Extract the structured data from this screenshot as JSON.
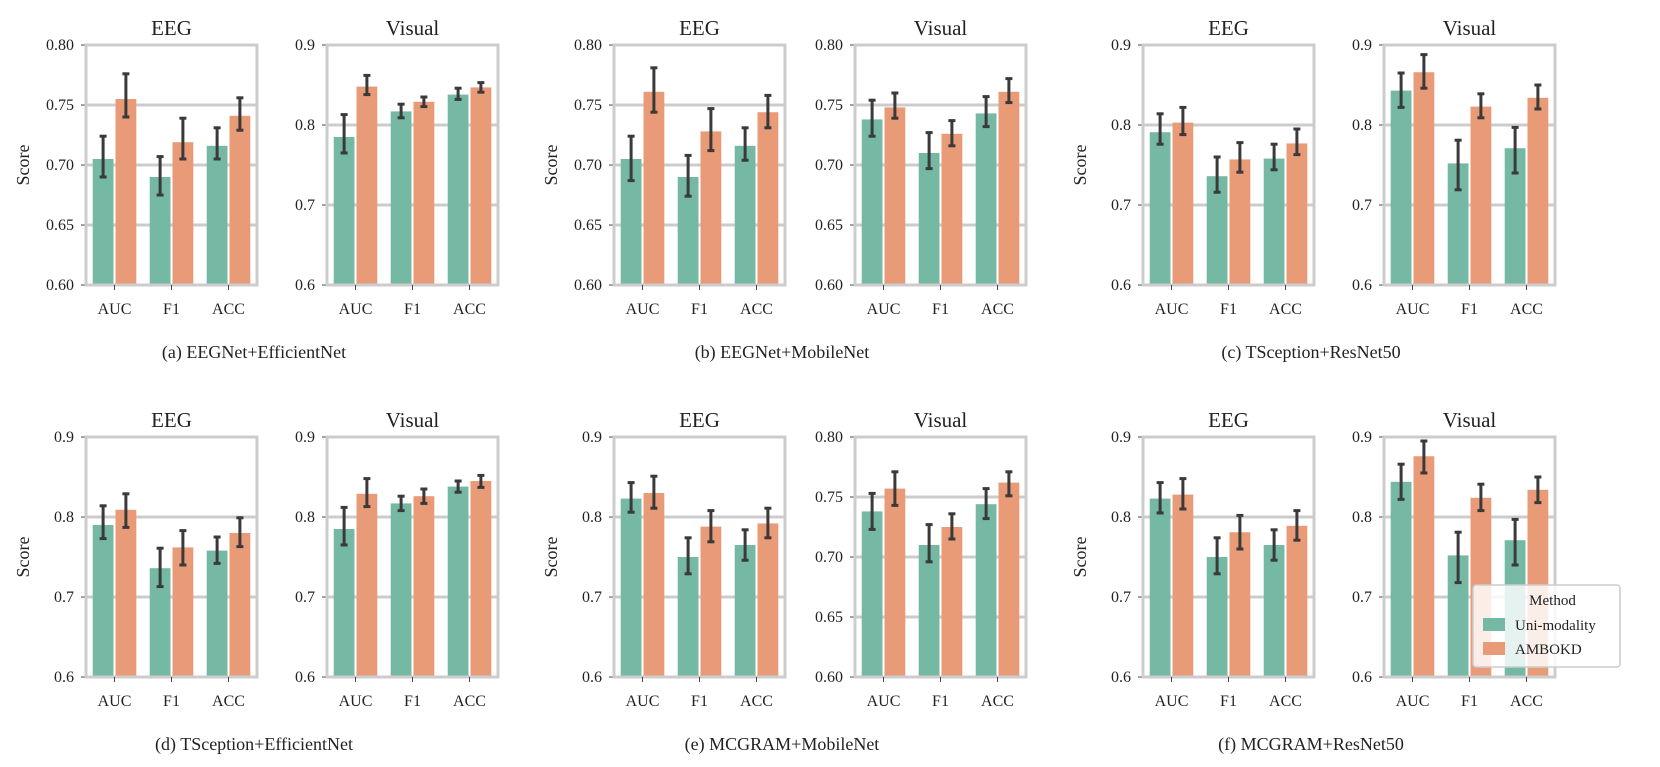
{
  "figure": {
    "colors": {
      "uni": "#75b8a4",
      "ambokd": "#e99b78",
      "grid": "#cccccc",
      "frame": "#cccccc",
      "err": "#3a3a3a"
    },
    "legend": {
      "title": "Method",
      "labels": [
        "Uni-modality",
        "AMBOKD"
      ],
      "placement": "bottom-right of panel (f)"
    },
    "ylabel": "Score"
  },
  "chart_data": [
    {
      "caption": "(a) EEGNet+EfficientNet",
      "subplots": [
        {
          "type": "bar",
          "title": "EEG",
          "categories": [
            "AUC",
            "F1",
            "ACC"
          ],
          "ylim": [
            0.6,
            0.8
          ],
          "yticks": [
            "0.60",
            "0.65",
            "0.70",
            "0.75",
            "0.80"
          ],
          "ylabel": "Score",
          "series": [
            {
              "name": "Uni-modality",
              "values": [
                0.705,
                0.69,
                0.716
              ],
              "err": [
                [
                  0.69,
                  0.724
                ],
                [
                  0.675,
                  0.707
                ],
                [
                  0.705,
                  0.731
                ]
              ]
            },
            {
              "name": "AMBOKD",
              "values": [
                0.755,
                0.719,
                0.741
              ],
              "err": [
                [
                  0.74,
                  0.776
                ],
                [
                  0.705,
                  0.739
                ],
                [
                  0.729,
                  0.756
                ]
              ]
            }
          ]
        },
        {
          "type": "bar",
          "title": "Visual",
          "categories": [
            "AUC",
            "F1",
            "ACC"
          ],
          "ylim": [
            0.6,
            0.9
          ],
          "yticks": [
            "0.6",
            "0.7",
            "0.8",
            "0.9"
          ],
          "ylabel": "",
          "series": [
            {
              "name": "Uni-modality",
              "values": [
                0.785,
                0.817,
                0.838
              ],
              "err": [
                [
                  0.765,
                  0.813
                ],
                [
                  0.809,
                  0.826
                ],
                [
                  0.832,
                  0.846
                ]
              ]
            },
            {
              "name": "AMBOKD",
              "values": [
                0.848,
                0.829,
                0.847
              ],
              "err": [
                [
                  0.838,
                  0.862
                ],
                [
                  0.823,
                  0.835
                ],
                [
                  0.841,
                  0.853
                ]
              ]
            }
          ]
        }
      ]
    },
    {
      "caption": "(b) EEGNet+MobileNet",
      "subplots": [
        {
          "type": "bar",
          "title": "EEG",
          "categories": [
            "AUC",
            "F1",
            "ACC"
          ],
          "ylim": [
            0.6,
            0.8
          ],
          "yticks": [
            "0.60",
            "0.65",
            "0.70",
            "0.75",
            "0.80"
          ],
          "ylabel": "Score",
          "series": [
            {
              "name": "Uni-modality",
              "values": [
                0.705,
                0.69,
                0.716
              ],
              "err": [
                [
                  0.687,
                  0.724
                ],
                [
                  0.674,
                  0.708
                ],
                [
                  0.704,
                  0.731
                ]
              ]
            },
            {
              "name": "AMBOKD",
              "values": [
                0.761,
                0.728,
                0.744
              ],
              "err": [
                [
                  0.744,
                  0.781
                ],
                [
                  0.712,
                  0.747
                ],
                [
                  0.731,
                  0.758
                ]
              ]
            }
          ]
        },
        {
          "type": "bar",
          "title": "Visual",
          "categories": [
            "AUC",
            "F1",
            "ACC"
          ],
          "ylim": [
            0.6,
            0.8
          ],
          "yticks": [
            "0.60",
            "0.65",
            "0.70",
            "0.75",
            "0.80"
          ],
          "ylabel": "",
          "series": [
            {
              "name": "Uni-modality",
              "values": [
                0.738,
                0.71,
                0.743
              ],
              "err": [
                [
                  0.724,
                  0.754
                ],
                [
                  0.697,
                  0.727
                ],
                [
                  0.732,
                  0.757
                ]
              ]
            },
            {
              "name": "AMBOKD",
              "values": [
                0.748,
                0.726,
                0.761
              ],
              "err": [
                [
                  0.739,
                  0.76
                ],
                [
                  0.716,
                  0.737
                ],
                [
                  0.752,
                  0.772
                ]
              ]
            }
          ]
        }
      ]
    },
    {
      "caption": "(c) TSception+ResNet50",
      "subplots": [
        {
          "type": "bar",
          "title": "EEG",
          "categories": [
            "AUC",
            "F1",
            "ACC"
          ],
          "ylim": [
            0.6,
            0.9
          ],
          "yticks": [
            "0.6",
            "0.7",
            "0.8",
            "0.9"
          ],
          "ylabel": "Score",
          "series": [
            {
              "name": "Uni-modality",
              "values": [
                0.791,
                0.736,
                0.758
              ],
              "err": [
                [
                  0.776,
                  0.814
                ],
                [
                  0.716,
                  0.76
                ],
                [
                  0.744,
                  0.776
                ]
              ]
            },
            {
              "name": "AMBOKD",
              "values": [
                0.803,
                0.757,
                0.777
              ],
              "err": [
                [
                  0.788,
                  0.822
                ],
                [
                  0.741,
                  0.778
                ],
                [
                  0.763,
                  0.795
                ]
              ]
            }
          ]
        },
        {
          "type": "bar",
          "title": "Visual",
          "categories": [
            "AUC",
            "F1",
            "ACC"
          ],
          "ylim": [
            0.6,
            0.9
          ],
          "yticks": [
            "0.6",
            "0.7",
            "0.8",
            "0.9"
          ],
          "ylabel": "",
          "series": [
            {
              "name": "Uni-modality",
              "values": [
                0.843,
                0.752,
                0.771
              ],
              "err": [
                [
                  0.822,
                  0.865
                ],
                [
                  0.719,
                  0.781
                ],
                [
                  0.74,
                  0.797
                ]
              ]
            },
            {
              "name": "AMBOKD",
              "values": [
                0.866,
                0.823,
                0.834
              ],
              "err": [
                [
                  0.846,
                  0.888
                ],
                [
                  0.809,
                  0.839
                ],
                [
                  0.82,
                  0.85
                ]
              ]
            }
          ]
        }
      ]
    },
    {
      "caption": "(d) TSception+EfficientNet",
      "subplots": [
        {
          "type": "bar",
          "title": "EEG",
          "categories": [
            "AUC",
            "F1",
            "ACC"
          ],
          "ylim": [
            0.6,
            0.9
          ],
          "yticks": [
            "0.6",
            "0.7",
            "0.8",
            "0.9"
          ],
          "ylabel": "Score",
          "series": [
            {
              "name": "Uni-modality",
              "values": [
                0.79,
                0.736,
                0.758
              ],
              "err": [
                [
                  0.773,
                  0.814
                ],
                [
                  0.713,
                  0.761
                ],
                [
                  0.742,
                  0.775
                ]
              ]
            },
            {
              "name": "AMBOKD",
              "values": [
                0.809,
                0.762,
                0.78
              ],
              "err": [
                [
                  0.787,
                  0.829
                ],
                [
                  0.74,
                  0.783
                ],
                [
                  0.763,
                  0.799
                ]
              ]
            }
          ]
        },
        {
          "type": "bar",
          "title": "Visual",
          "categories": [
            "AUC",
            "F1",
            "ACC"
          ],
          "ylim": [
            0.6,
            0.9
          ],
          "yticks": [
            "0.6",
            "0.7",
            "0.8",
            "0.9"
          ],
          "ylabel": "",
          "series": [
            {
              "name": "Uni-modality",
              "values": [
                0.785,
                0.817,
                0.838
              ],
              "err": [
                [
                  0.765,
                  0.812
                ],
                [
                  0.808,
                  0.826
                ],
                [
                  0.831,
                  0.845
                ]
              ]
            },
            {
              "name": "AMBOKD",
              "values": [
                0.829,
                0.826,
                0.845
              ],
              "err": [
                [
                  0.813,
                  0.848
                ],
                [
                  0.817,
                  0.835
                ],
                [
                  0.837,
                  0.852
                ]
              ]
            }
          ]
        }
      ]
    },
    {
      "caption": "(e) MCGRAM+MobileNet",
      "subplots": [
        {
          "type": "bar",
          "title": "EEG",
          "categories": [
            "AUC",
            "F1",
            "ACC"
          ],
          "ylim": [
            0.6,
            0.9
          ],
          "yticks": [
            "0.6",
            "0.7",
            "0.8",
            "0.9"
          ],
          "ylabel": "Score",
          "series": [
            {
              "name": "Uni-modality",
              "values": [
                0.823,
                0.75,
                0.765
              ],
              "err": [
                [
                  0.806,
                  0.843
                ],
                [
                  0.729,
                  0.774
                ],
                [
                  0.746,
                  0.784
                ]
              ]
            },
            {
              "name": "AMBOKD",
              "values": [
                0.83,
                0.788,
                0.792
              ],
              "err": [
                [
                  0.811,
                  0.851
                ],
                [
                  0.769,
                  0.808
                ],
                [
                  0.774,
                  0.811
                ]
              ]
            }
          ]
        },
        {
          "type": "bar",
          "title": "Visual",
          "categories": [
            "AUC",
            "F1",
            "ACC"
          ],
          "ylim": [
            0.6,
            0.8
          ],
          "yticks": [
            "0.60",
            "0.65",
            "0.70",
            "0.75",
            "0.80"
          ],
          "ylabel": "",
          "series": [
            {
              "name": "Uni-modality",
              "values": [
                0.738,
                0.71,
                0.744
              ],
              "err": [
                [
                  0.723,
                  0.753
                ],
                [
                  0.696,
                  0.727
                ],
                [
                  0.732,
                  0.757
                ]
              ]
            },
            {
              "name": "AMBOKD",
              "values": [
                0.757,
                0.725,
                0.762
              ],
              "err": [
                [
                  0.743,
                  0.771
                ],
                [
                  0.715,
                  0.736
                ],
                [
                  0.751,
                  0.771
                ]
              ]
            }
          ]
        }
      ]
    },
    {
      "caption": "(f) MCGRAM+ResNet50",
      "subplots": [
        {
          "type": "bar",
          "title": "EEG",
          "categories": [
            "AUC",
            "F1",
            "ACC"
          ],
          "ylim": [
            0.6,
            0.9
          ],
          "yticks": [
            "0.6",
            "0.7",
            "0.8",
            "0.9"
          ],
          "ylabel": "Score",
          "series": [
            {
              "name": "Uni-modality",
              "values": [
                0.823,
                0.75,
                0.765
              ],
              "err": [
                [
                  0.805,
                  0.843
                ],
                [
                  0.729,
                  0.774
                ],
                [
                  0.746,
                  0.784
                ]
              ]
            },
            {
              "name": "AMBOKD",
              "values": [
                0.828,
                0.781,
                0.789
              ],
              "err": [
                [
                  0.81,
                  0.848
                ],
                [
                  0.76,
                  0.802
                ],
                [
                  0.771,
                  0.808
                ]
              ]
            }
          ]
        },
        {
          "type": "bar",
          "title": "Visual",
          "categories": [
            "AUC",
            "F1",
            "ACC"
          ],
          "ylim": [
            0.6,
            0.9
          ],
          "yticks": [
            "0.6",
            "0.7",
            "0.8",
            "0.9"
          ],
          "ylabel": "",
          "series": [
            {
              "name": "Uni-modality",
              "values": [
                0.844,
                0.752,
                0.771
              ],
              "err": [
                [
                  0.822,
                  0.866
                ],
                [
                  0.718,
                  0.781
                ],
                [
                  0.74,
                  0.797
                ]
              ]
            },
            {
              "name": "AMBOKD",
              "values": [
                0.876,
                0.824,
                0.834
              ],
              "err": [
                [
                  0.855,
                  0.895
                ],
                [
                  0.808,
                  0.841
                ],
                [
                  0.818,
                  0.85
                ]
              ]
            }
          ]
        }
      ]
    }
  ]
}
